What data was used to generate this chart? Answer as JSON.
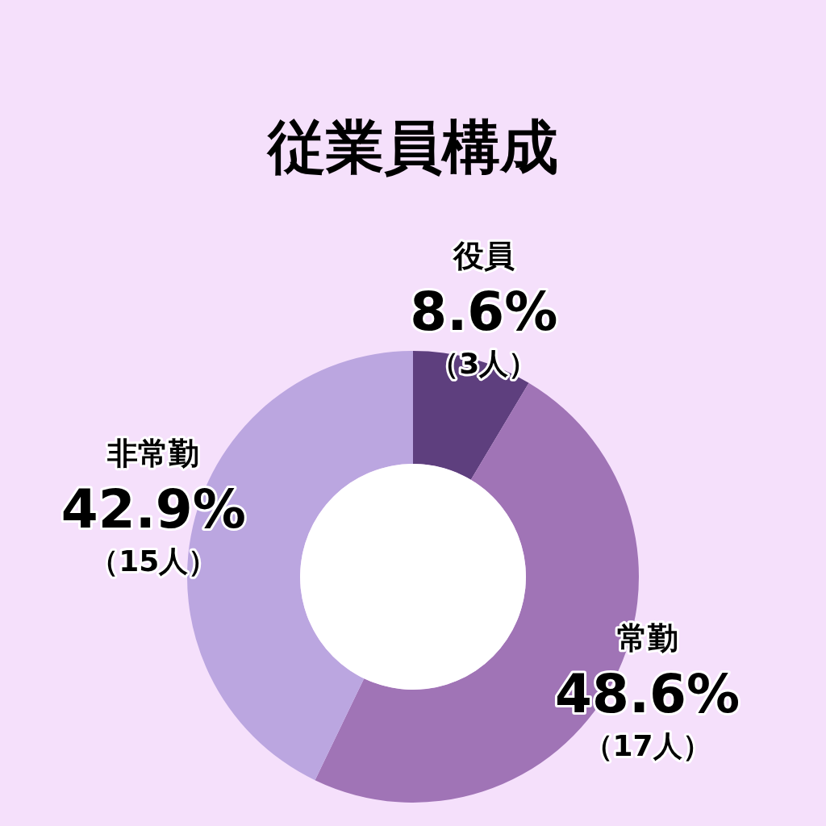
{
  "chart_data": {
    "type": "donut",
    "title": "従業員構成",
    "categories": [
      "役員",
      "常勤",
      "非常勤"
    ],
    "values": [
      3,
      17,
      15
    ],
    "colors": [
      "#5e3f7e",
      "#a074b6",
      "#bba6e0"
    ],
    "value_labels": [
      "8.6%\n（3人）",
      "48.6%\n（17人）",
      "42.9%\n（15人）"
    ]
  }
}
